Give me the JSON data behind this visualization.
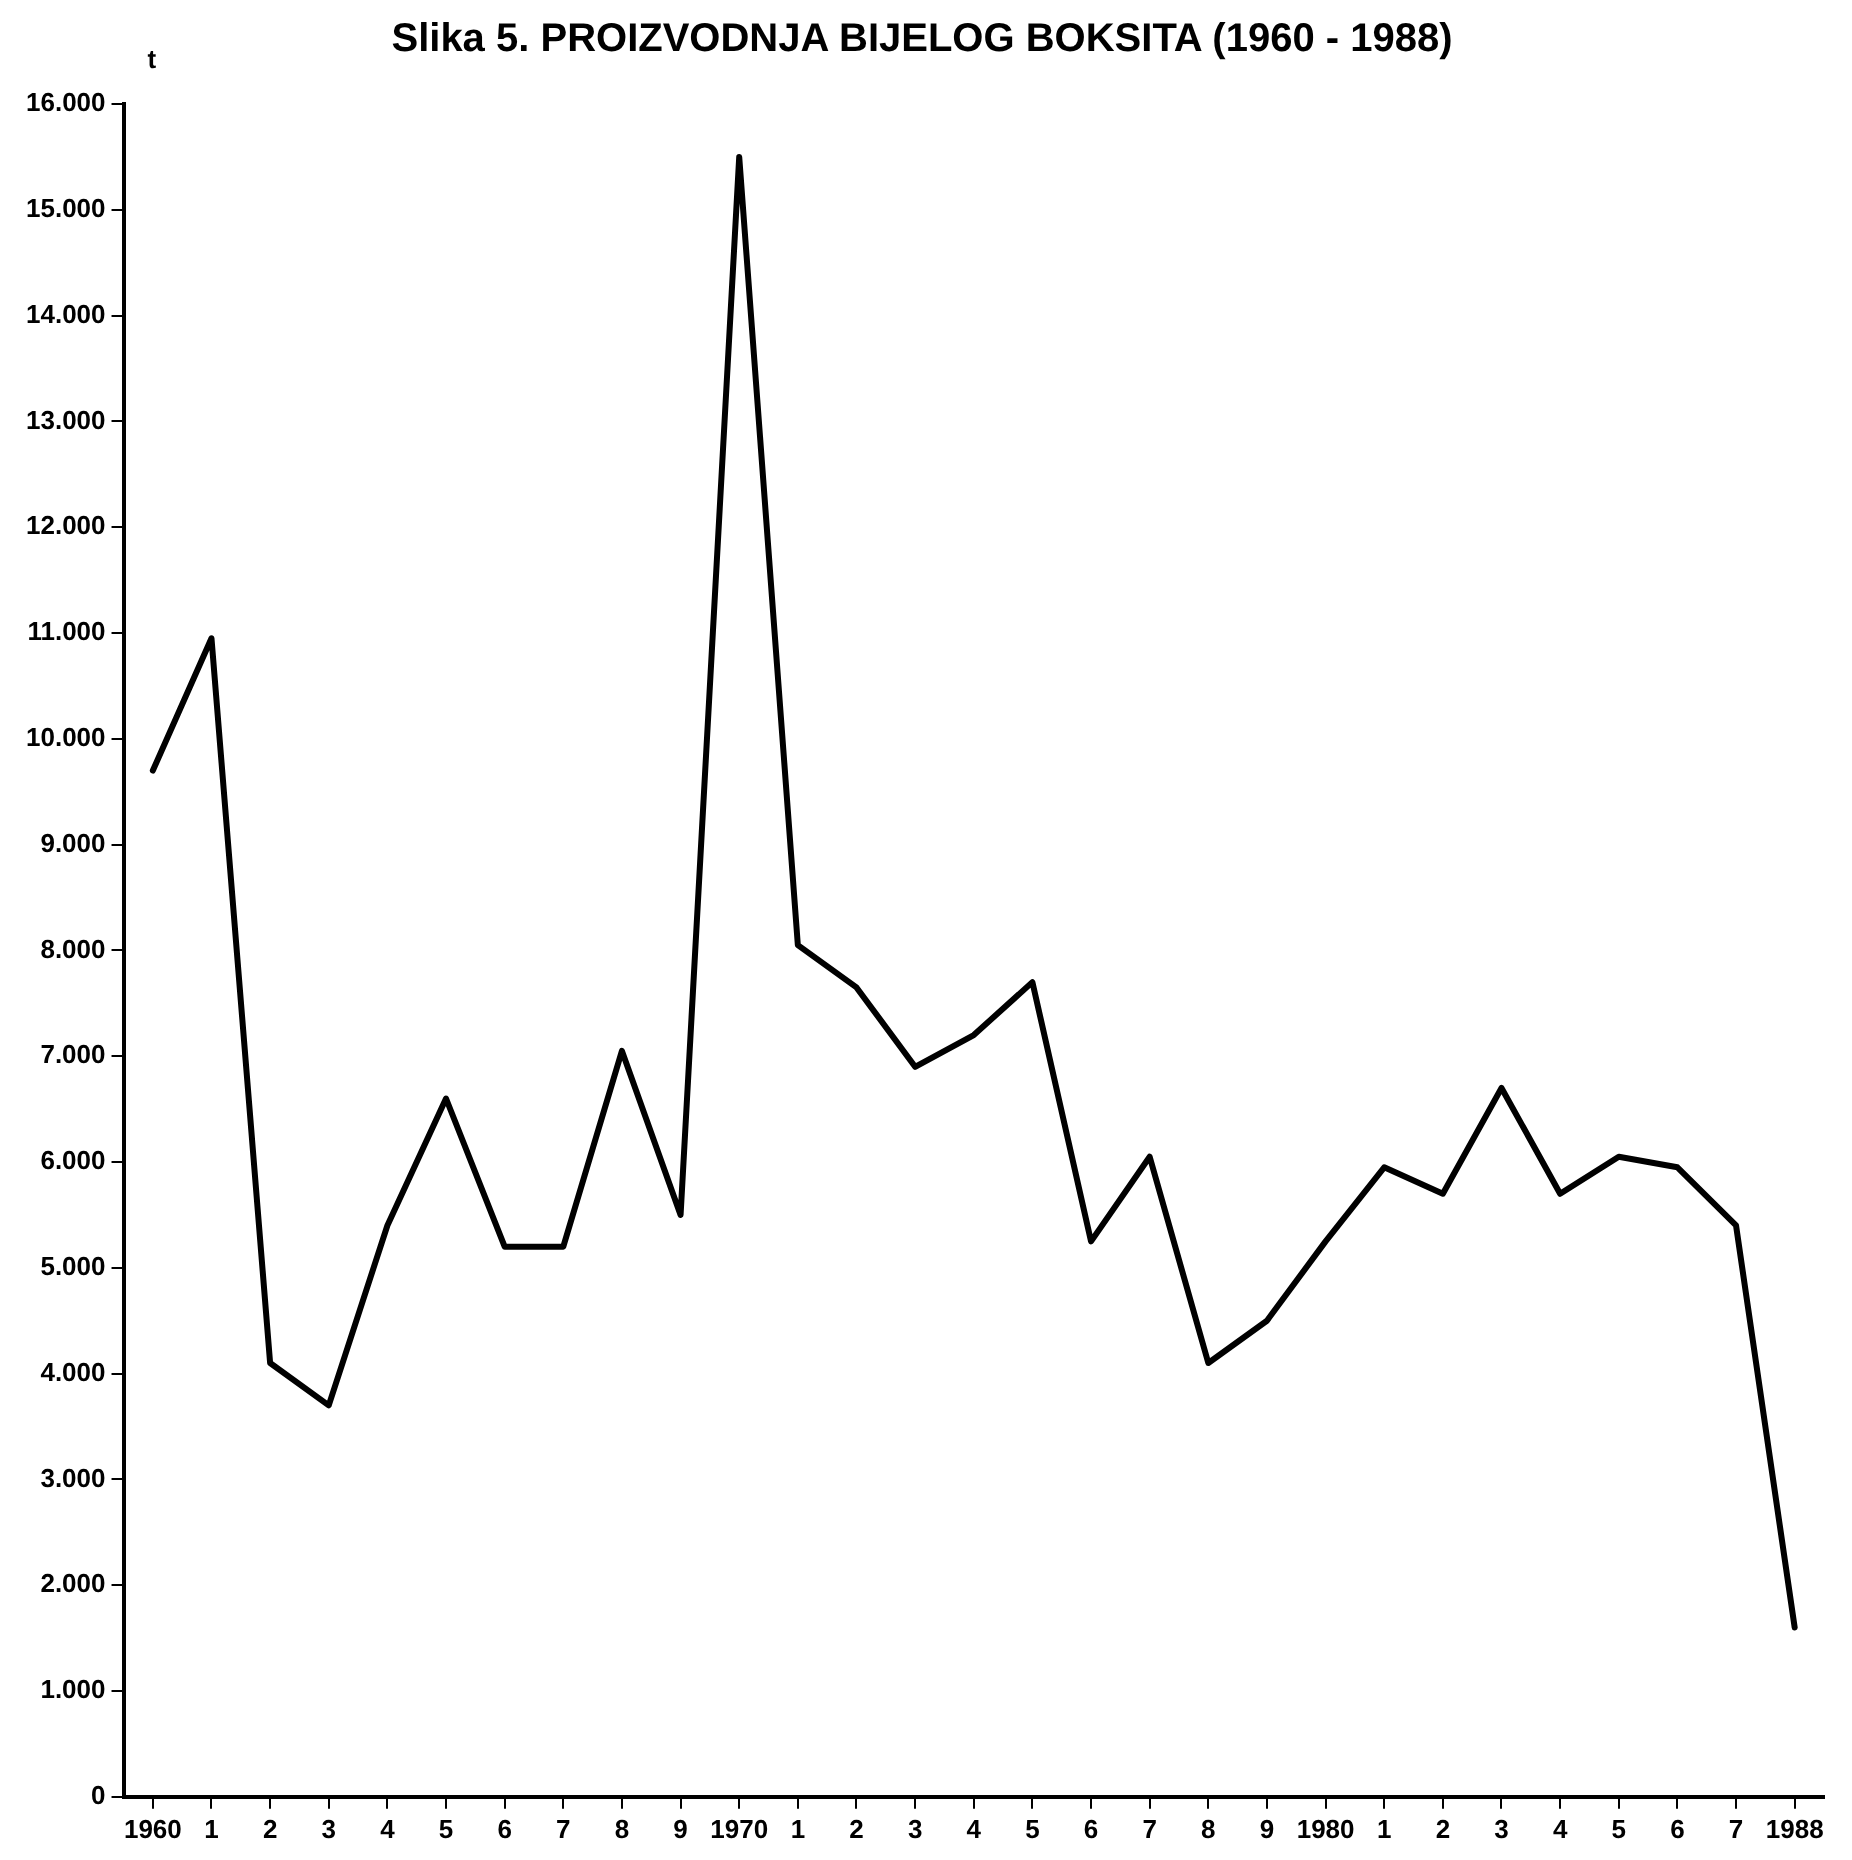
{
  "chart_data": {
    "type": "line",
    "title": "Slika 5. PROIZVODNJA BIJELOG BOKSITA (1960 - 1988)",
    "ylabel": "t",
    "categories": [
      "1960",
      "1",
      "2",
      "3",
      "4",
      "5",
      "6",
      "7",
      "8",
      "9",
      "1970",
      "1",
      "2",
      "3",
      "4",
      "5",
      "6",
      "7",
      "8",
      "9",
      "1980",
      "1",
      "2",
      "3",
      "4",
      "5",
      "6",
      "7",
      "1988"
    ],
    "series": [
      {
        "color": "#000000",
        "values": [
          9700,
          10950,
          4100,
          3700,
          5400,
          6600,
          5200,
          5200,
          7050,
          5500,
          15500,
          8050,
          7650,
          6900,
          7200,
          7700,
          5250,
          6050,
          4100,
          4500,
          5250,
          5950,
          5700,
          6700,
          5700,
          6050,
          5950,
          5400,
          1600
        ]
      }
    ],
    "ylim": [
      0,
      16000
    ],
    "yticks": [
      0,
      {
        "value": 1000,
        "label": "1.000"
      },
      {
        "value": 2000,
        "label": "2.000"
      },
      {
        "value": 3000,
        "label": "3.000"
      },
      {
        "value": 4000,
        "label": "4.000"
      },
      {
        "value": 5000,
        "label": "5.000"
      },
      {
        "value": 6000,
        "label": "6.000"
      },
      {
        "value": 7000,
        "label": "7.000"
      },
      {
        "value": 8000,
        "label": "8.000"
      },
      {
        "value": 9000,
        "label": "9.000"
      },
      {
        "value": 10000,
        "label": "10.000"
      },
      {
        "value": 11000,
        "label": "11.000"
      },
      {
        "value": 12000,
        "label": "12.000"
      },
      {
        "value": 13000,
        "label": "13.000"
      },
      {
        "value": 14000,
        "label": "14.000"
      },
      {
        "value": 15000,
        "label": "15.000"
      },
      {
        "value": 16000,
        "label": "16.000"
      }
    ],
    "grid": false,
    "legend": false,
    "marker": "none",
    "line_style": "solid"
  }
}
